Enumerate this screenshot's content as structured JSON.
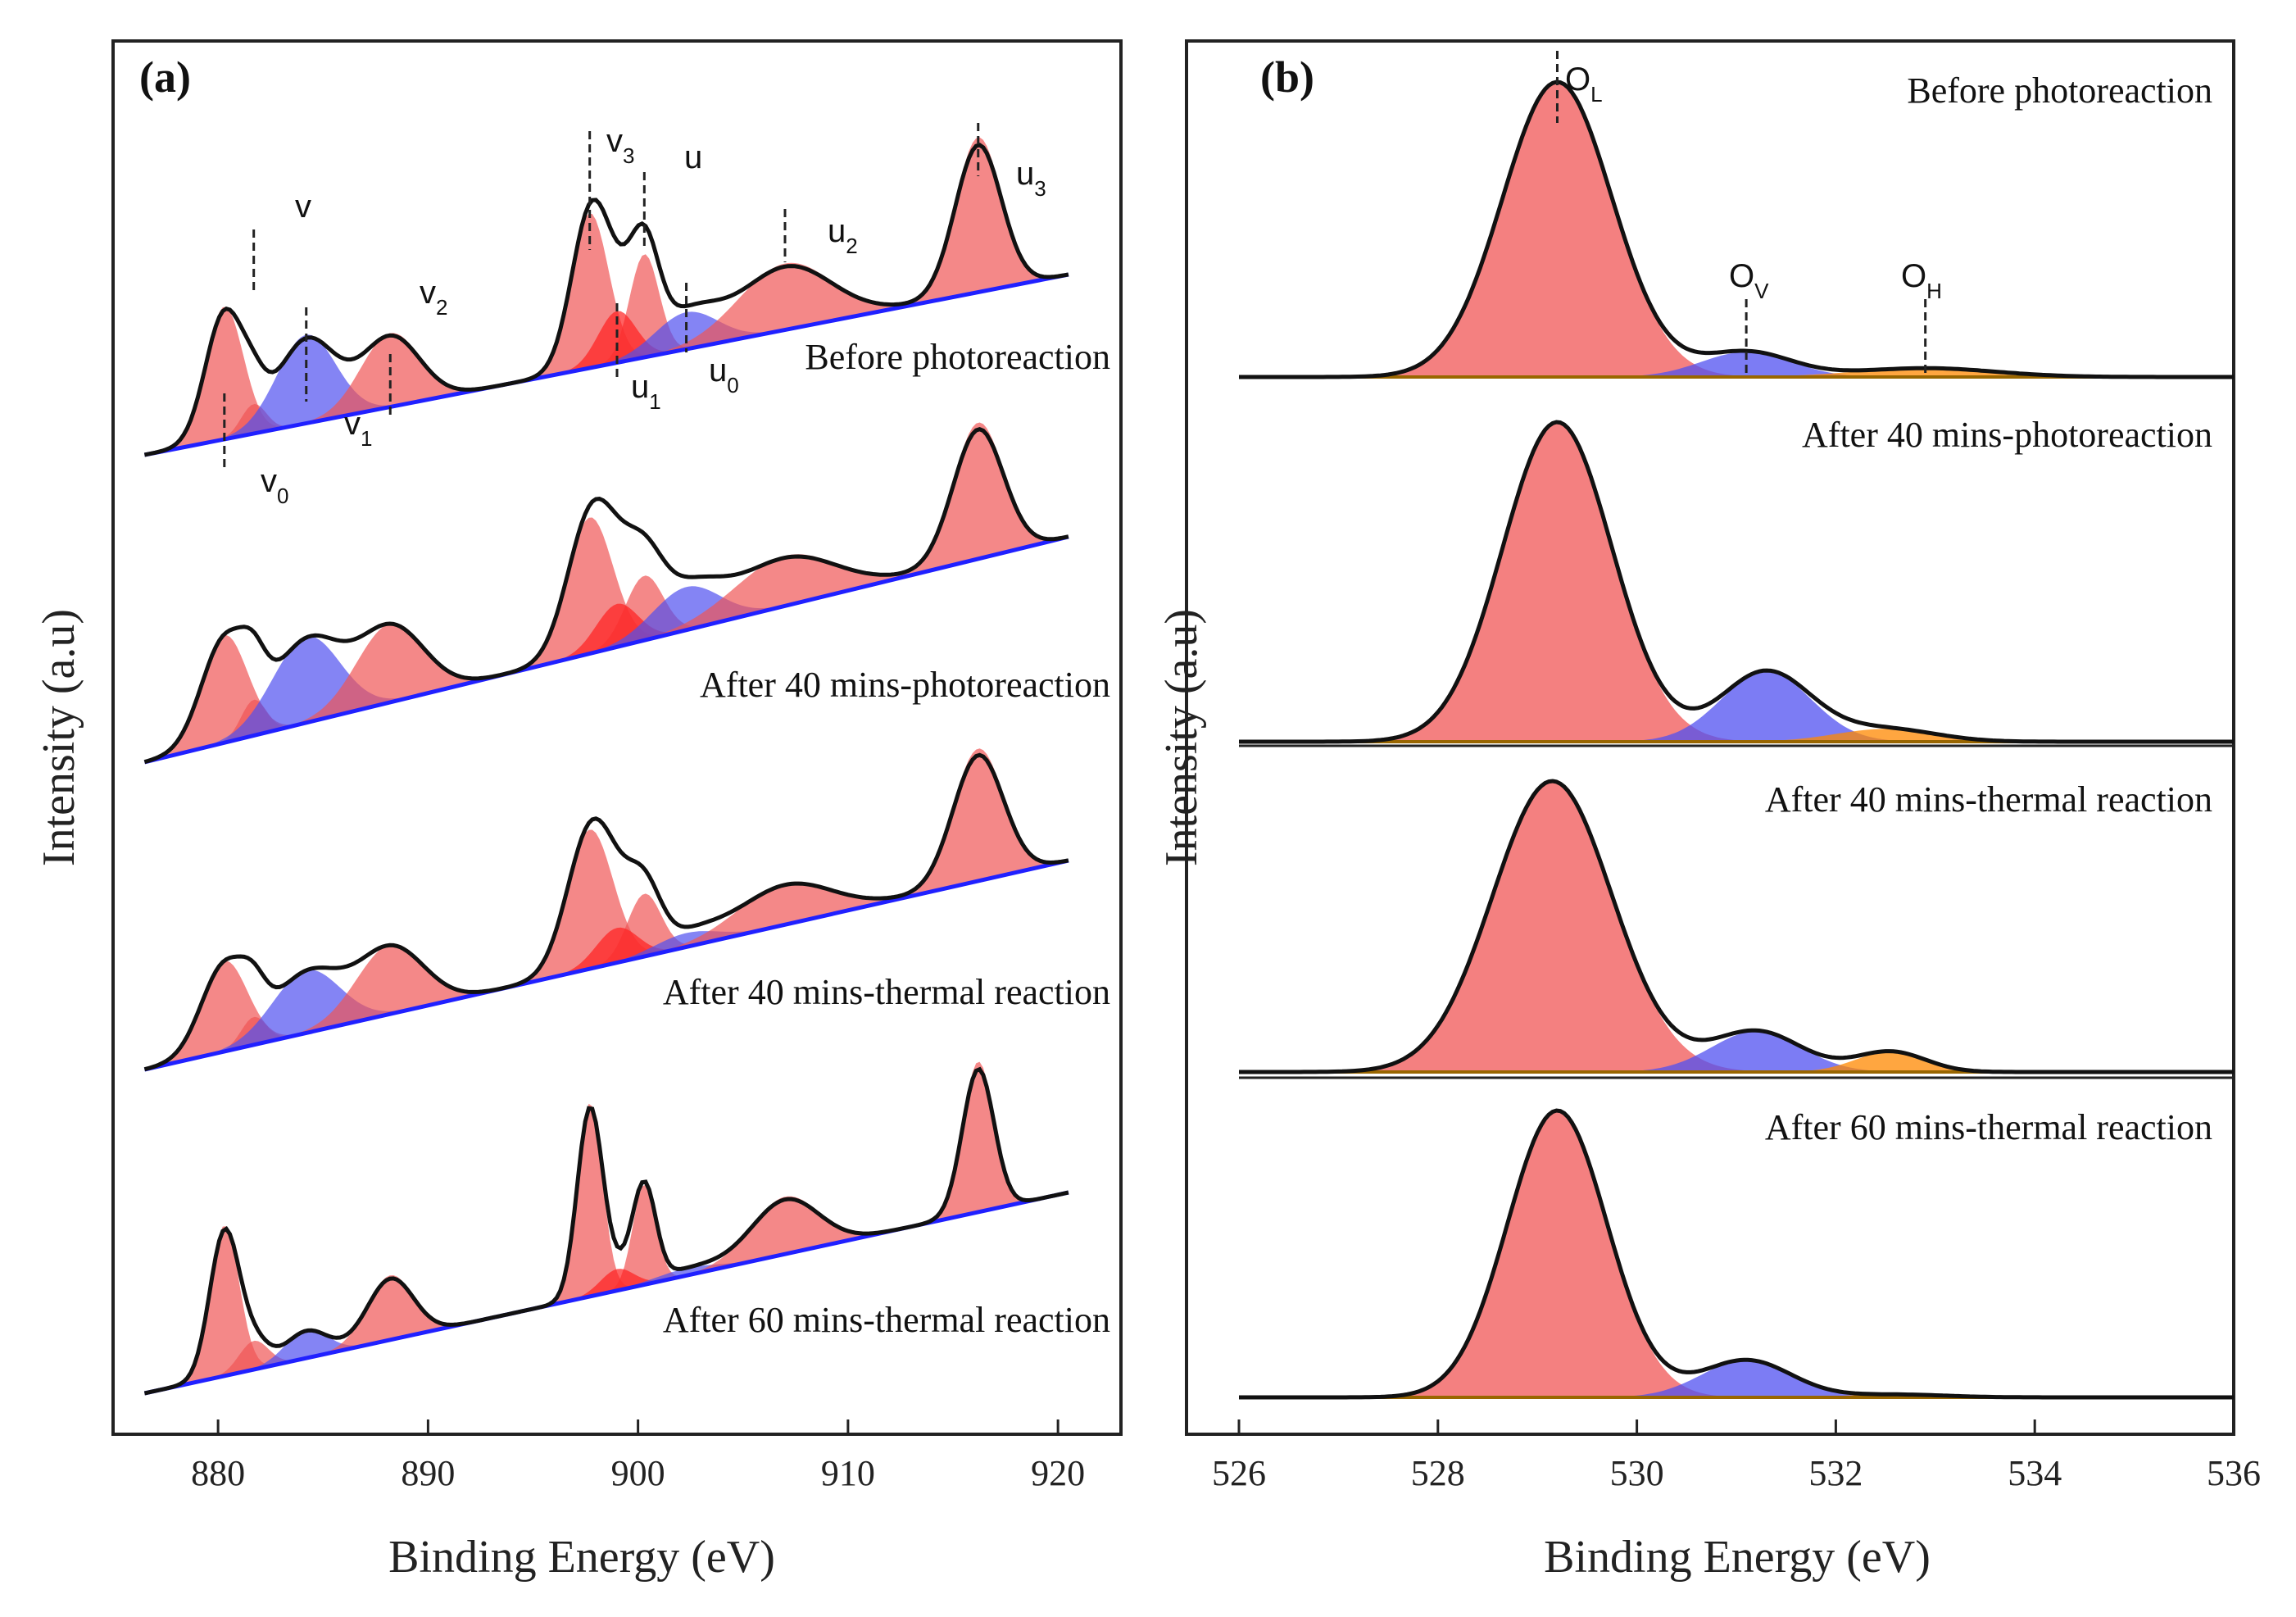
{
  "chart_data": [
    {
      "type": "line",
      "panel": "(a)",
      "xlabel": "Binding Energy (eV)",
      "ylabel": "Intensity (a.u)",
      "xlim": [
        875,
        923
      ],
      "xticks": [
        880,
        890,
        900,
        910,
        920
      ],
      "xtick_labels": [
        "880",
        "890",
        "900",
        "910",
        "920"
      ],
      "peak_labels": [
        {
          "name": "v",
          "sub": "",
          "x": 881.7,
          "col": "#f05555"
        },
        {
          "name": "v",
          "sub": "0",
          "x": 880.3,
          "col": "#f05555"
        },
        {
          "name": "v",
          "sub": "1",
          "x": 884.2,
          "col": "#5050f0"
        },
        {
          "name": "v",
          "sub": "2",
          "x": 888.2,
          "col": "#f05555"
        },
        {
          "name": "v",
          "sub": "3",
          "x": 897.7,
          "col": "#f05555"
        },
        {
          "name": "u",
          "sub": "",
          "x": 900.3,
          "col": "#f05555"
        },
        {
          "name": "u",
          "sub": "1",
          "x": 899.0,
          "col": "#ff2020"
        },
        {
          "name": "u",
          "sub": "0",
          "x": 902.3,
          "col": "#5050f0"
        },
        {
          "name": "u",
          "sub": "2",
          "x": 907.0,
          "col": "#f05555"
        },
        {
          "name": "u",
          "sub": "3",
          "x": 916.2,
          "col": "#f05555"
        }
      ],
      "spectra": [
        {
          "label": "Before photoreaction",
          "baseline": 1.0,
          "heights": [
            0.2,
            0.9,
            0.6,
            0.5,
            1.05,
            0.7,
            0.35,
            0.25,
            0.45,
            1.05
          ],
          "widths": [
            0.6,
            0.9,
            1.4,
            1.4,
            0.9,
            0.7,
            0.9,
            1.5,
            2.2,
            1.1
          ]
        },
        {
          "label": "After 40 mins-photoreaction",
          "baseline": 1.0,
          "heights": [
            0.25,
            0.75,
            0.6,
            0.55,
            0.95,
            0.45,
            0.3,
            0.3,
            0.35,
            0.95
          ],
          "widths": [
            0.6,
            1.1,
            1.6,
            1.6,
            1.1,
            0.9,
            1.0,
            1.6,
            2.4,
            1.2
          ]
        },
        {
          "label": "After 40 mins-thermal reaction",
          "baseline": 1.0,
          "heights": [
            0.2,
            0.65,
            0.45,
            0.5,
            1.0,
            0.45,
            0.25,
            0.1,
            0.3,
            0.95
          ],
          "widths": [
            0.6,
            1.1,
            1.6,
            1.6,
            1.1,
            0.8,
            1.0,
            1.5,
            2.2,
            1.2
          ]
        },
        {
          "label": "After 60 mins-thermal reaction",
          "baseline": 1.0,
          "heights": [
            0.2,
            1.05,
            0.2,
            0.45,
            1.35,
            0.7,
            0.15,
            0.05,
            0.4,
            1.05
          ],
          "widths": [
            0.7,
            0.7,
            1.0,
            1.1,
            0.6,
            0.55,
            0.8,
            1.5,
            1.6,
            0.75
          ]
        }
      ]
    },
    {
      "type": "line",
      "panel": "(b)",
      "xlabel": "Binding Energy (eV)",
      "ylabel": "Intensity (a.u)",
      "xlim": [
        526,
        536
      ],
      "xticks": [
        526,
        528,
        530,
        532,
        534,
        536
      ],
      "xtick_labels": [
        "526",
        "528",
        "530",
        "532",
        "534",
        "536"
      ],
      "peak_labels": [
        {
          "name": "O",
          "sub": "L",
          "x": 529.2,
          "col": "#f05555"
        },
        {
          "name": "O",
          "sub": "V",
          "x": 531.1,
          "col": "#5050f0"
        },
        {
          "name": "O",
          "sub": "H",
          "x": 532.9,
          "col": "#ff8800"
        }
      ],
      "spectra": [
        {
          "label": "Before photoreaction",
          "heights": [
            1.0,
            0.085,
            0.03
          ],
          "widths": [
            0.55,
            0.45,
            0.7
          ],
          "centers": [
            529.2,
            531.1,
            532.9
          ]
        },
        {
          "label": "After 40 mins-photoreaction",
          "heights": [
            1.0,
            0.22,
            0.04
          ],
          "widths": [
            0.55,
            0.45,
            0.5
          ],
          "centers": [
            529.2,
            531.3,
            532.5
          ]
        },
        {
          "label": "After 40 mins-thermal reaction",
          "heights": [
            1.0,
            0.14,
            0.07
          ],
          "widths": [
            0.6,
            0.45,
            0.35
          ],
          "centers": [
            529.15,
            531.2,
            532.55
          ]
        },
        {
          "label": "After 60 mins-thermal reaction",
          "heights": [
            1.0,
            0.13,
            0.01
          ],
          "widths": [
            0.5,
            0.45,
            0.5
          ],
          "centers": [
            529.2,
            531.1,
            532.6
          ]
        }
      ]
    }
  ]
}
